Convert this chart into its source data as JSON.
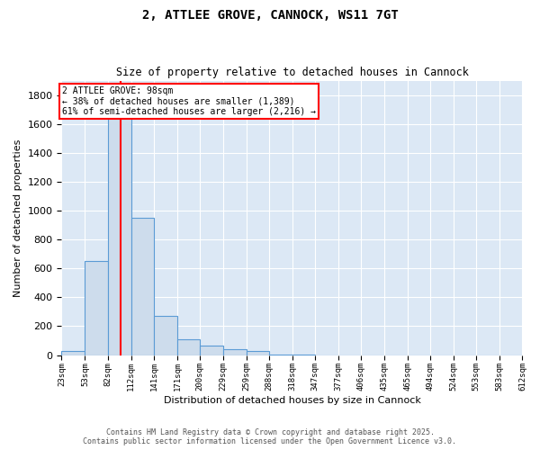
{
  "title1": "2, ATTLEE GROVE, CANNOCK, WS11 7GT",
  "title2": "Size of property relative to detached houses in Cannock",
  "xlabel": "Distribution of detached houses by size in Cannock",
  "ylabel": "Number of detached properties",
  "bar_values": [
    30,
    650,
    1700,
    950,
    270,
    110,
    65,
    40,
    30,
    5,
    2,
    0,
    0,
    0,
    0,
    0,
    0,
    0,
    0,
    0
  ],
  "bin_edges": [
    23,
    53,
    82,
    112,
    141,
    171,
    200,
    229,
    259,
    288,
    318,
    347,
    377,
    406,
    435,
    465,
    494,
    524,
    553,
    583,
    612
  ],
  "tick_labels": [
    "23sqm",
    "53sqm",
    "82sqm",
    "112sqm",
    "141sqm",
    "171sqm",
    "200sqm",
    "229sqm",
    "259sqm",
    "288sqm",
    "318sqm",
    "347sqm",
    "377sqm",
    "406sqm",
    "435sqm",
    "465sqm",
    "494sqm",
    "524sqm",
    "553sqm",
    "583sqm",
    "612sqm"
  ],
  "bar_color": "#cddcec",
  "bar_edge_color": "#5b9bd5",
  "bg_color": "#dce8f5",
  "red_line_x": 98,
  "ylim": [
    0,
    1900
  ],
  "yticks": [
    0,
    200,
    400,
    600,
    800,
    1000,
    1200,
    1400,
    1600,
    1800
  ],
  "annotation_title": "2 ATTLEE GROVE: 98sqm",
  "annotation_line1": "← 38% of detached houses are smaller (1,389)",
  "annotation_line2": "61% of semi-detached houses are larger (2,216) →",
  "footer1": "Contains HM Land Registry data © Crown copyright and database right 2025.",
  "footer2": "Contains public sector information licensed under the Open Government Licence v3.0."
}
